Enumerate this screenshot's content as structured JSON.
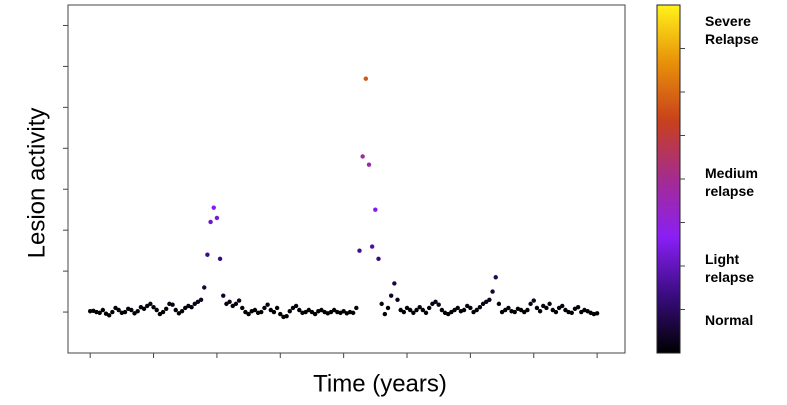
{
  "chart_data": {
    "type": "scatter",
    "x_label": "Time (years)",
    "y_label": "Lesion activity",
    "x": [
      0,
      0.05,
      0.1,
      0.15,
      0.2,
      0.25,
      0.3,
      0.35,
      0.4,
      0.45,
      0.5,
      0.55,
      0.6,
      0.65,
      0.7,
      0.75,
      0.8,
      0.85,
      0.9,
      0.95,
      1,
      1.05,
      1.1,
      1.15,
      1.2,
      1.25,
      1.3,
      1.35,
      1.4,
      1.45,
      1.5,
      1.55,
      1.6,
      1.65,
      1.7,
      1.75,
      1.8,
      1.85,
      1.9,
      1.95,
      2,
      2.05,
      2.1,
      2.15,
      2.2,
      2.25,
      2.3,
      2.35,
      2.4,
      2.45,
      2.5,
      2.55,
      2.6,
      2.65,
      2.7,
      2.75,
      2.8,
      2.85,
      2.9,
      2.95,
      3,
      3.05,
      3.1,
      3.15,
      3.2,
      3.25,
      3.3,
      3.35,
      3.4,
      3.45,
      3.5,
      3.55,
      3.6,
      3.65,
      3.7,
      3.75,
      3.8,
      3.85,
      3.9,
      3.95,
      4,
      4.05,
      4.1,
      4.15,
      4.2,
      4.25,
      4.3,
      4.35,
      4.4,
      4.45,
      4.5,
      4.55,
      4.6,
      4.65,
      4.7,
      4.75,
      4.8,
      4.85,
      4.9,
      4.95,
      5,
      5.05,
      5.1,
      5.15,
      5.2,
      5.25,
      5.3,
      5.35,
      5.4,
      5.45,
      5.5,
      5.55,
      5.6,
      5.65,
      5.7,
      5.75,
      5.8,
      5.85,
      5.9,
      5.95,
      6,
      6.05,
      6.1,
      6.15,
      6.2,
      6.25,
      6.3,
      6.35,
      6.4,
      6.45,
      6.5,
      6.55,
      6.6,
      6.65,
      6.7,
      6.75,
      6.8,
      6.85,
      6.9,
      6.95,
      7,
      7.05,
      7.1,
      7.15,
      7.2,
      7.25,
      7.3,
      7.35,
      7.4,
      7.45,
      7.5,
      7.55,
      7.6,
      7.65,
      7.7,
      7.75,
      7.8,
      7.85,
      7.9,
      7.95,
      8
    ],
    "values": [
      1.02,
      1.03,
      1.0,
      0.98,
      1.05,
      0.96,
      0.92,
      1.0,
      1.1,
      1.05,
      0.98,
      1.0,
      1.08,
      1.05,
      0.97,
      1.02,
      1.12,
      1.08,
      1.15,
      1.2,
      1.12,
      1.05,
      0.95,
      1.0,
      1.08,
      1.2,
      1.18,
      1.05,
      0.97,
      1.02,
      1.1,
      1.15,
      1.12,
      1.2,
      1.25,
      1.3,
      1.6,
      2.4,
      3.2,
      3.55,
      3.3,
      2.3,
      1.4,
      1.2,
      1.25,
      1.15,
      1.2,
      1.28,
      1.1,
      1.0,
      0.95,
      1.02,
      1.05,
      0.98,
      1.0,
      1.1,
      1.18,
      1.05,
      1.0,
      1.1,
      0.95,
      0.88,
      0.9,
      1.02,
      1.1,
      1.15,
      1.05,
      0.98,
      1.0,
      1.05,
      1.0,
      0.95,
      1.02,
      1.05,
      1.0,
      0.97,
      1.0,
      1.05,
      1.0,
      0.98,
      1.02,
      0.97,
      1.0,
      0.98,
      1.1,
      2.5,
      4.8,
      6.7,
      4.6,
      2.6,
      3.5,
      2.3,
      1.2,
      0.95,
      1.1,
      1.4,
      1.7,
      1.3,
      1.05,
      1.0,
      1.1,
      1.05,
      0.98,
      1.05,
      1.12,
      1.05,
      0.98,
      1.1,
      1.2,
      1.25,
      1.18,
      1.05,
      0.98,
      0.95,
      1.0,
      1.05,
      1.1,
      1.02,
      1.05,
      1.15,
      1.1,
      1.0,
      1.05,
      1.12,
      1.2,
      1.25,
      1.3,
      1.5,
      1.85,
      1.2,
      1.0,
      1.05,
      1.1,
      1.02,
      1.0,
      1.08,
      1.05,
      1.0,
      1.05,
      1.2,
      1.28,
      1.1,
      1.02,
      1.15,
      1.1,
      1.2,
      1.05,
      1.0,
      1.1,
      1.15,
      1.05,
      1.0,
      0.98,
      1.08,
      1.12,
      1.0,
      1.05,
      1.02,
      0.98,
      0.95,
      0.97
    ],
    "xlim": [
      -0.35,
      8.44
    ],
    "xticks": [
      0,
      1,
      2,
      3,
      4,
      5,
      6,
      7,
      8
    ],
    "ylim": [
      0,
      8.5
    ],
    "yticks": [
      1,
      2,
      3,
      4,
      5,
      6,
      7,
      8
    ],
    "colormap": [
      "#000000",
      "#3a0c80",
      "#8a1ff5",
      "#a42c90",
      "#c8401c",
      "#e8900a",
      "#fff21a"
    ],
    "clim": [
      1,
      9
    ],
    "colorbar_ticks": [
      2,
      3,
      4,
      5,
      6,
      7,
      8
    ],
    "colorbar_labels": [
      {
        "value": 1.76,
        "label": "Normal"
      },
      {
        "value": 2.95,
        "label": "Light relapse"
      },
      {
        "value": 4.93,
        "label": "Medium relapse"
      },
      {
        "value": 8.43,
        "label": "Severe Relapse"
      }
    ]
  }
}
